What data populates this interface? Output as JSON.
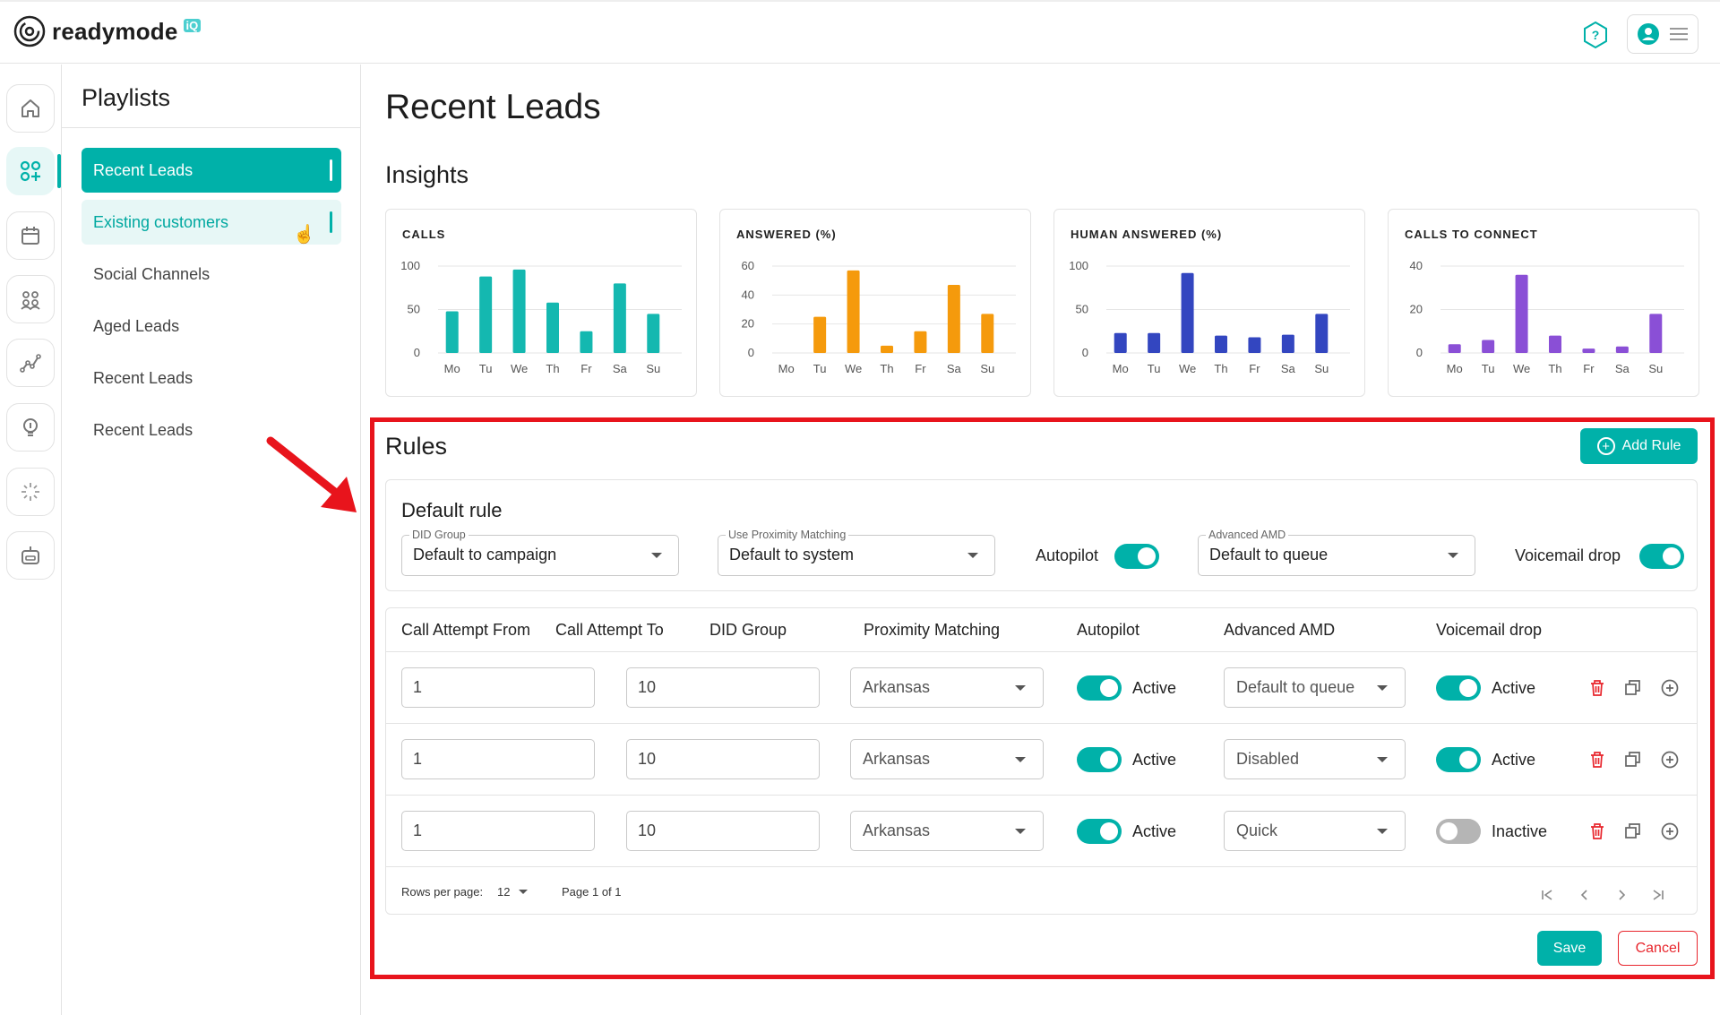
{
  "app": {
    "logo_text": "readymode",
    "logo_badge": "iQ"
  },
  "header": {
    "help_icon": "help-icon",
    "user_icon": "user-icon",
    "menu_icon": "hamburger-icon"
  },
  "rail": {
    "items": [
      {
        "icon": "home-icon",
        "active": false
      },
      {
        "icon": "playlists-icon",
        "active": true
      },
      {
        "icon": "calendar-icon",
        "active": false
      },
      {
        "icon": "team-icon",
        "active": false
      },
      {
        "icon": "analytics-icon",
        "active": false
      },
      {
        "icon": "lightbulb-icon",
        "active": false
      },
      {
        "icon": "loading-icon",
        "active": false
      },
      {
        "icon": "bot-icon",
        "active": false
      }
    ]
  },
  "playlists": {
    "title": "Playlists",
    "items": [
      {
        "label": "Recent Leads",
        "state": "selected"
      },
      {
        "label": "Existing customers",
        "state": "hover"
      },
      {
        "label": "Social Channels",
        "state": "normal"
      },
      {
        "label": "Aged Leads",
        "state": "normal"
      },
      {
        "label": "Recent Leads",
        "state": "normal"
      },
      {
        "label": "Recent Leads",
        "state": "normal"
      }
    ]
  },
  "main": {
    "title": "Recent Leads",
    "insights_title": "Insights"
  },
  "chart_data": [
    {
      "type": "bar",
      "title": "CALLS",
      "categories": [
        "Mo",
        "Tu",
        "We",
        "Th",
        "Fr",
        "Sa",
        "Su"
      ],
      "values": [
        48,
        88,
        96,
        58,
        25,
        80,
        45
      ],
      "yticks": [
        "100",
        "50",
        "0"
      ],
      "ylim": [
        0,
        100
      ],
      "color": "#14b8b0",
      "grid": true
    },
    {
      "type": "bar",
      "title": "ANSWERED (%)",
      "categories": [
        "Mo",
        "Tu",
        "We",
        "Th",
        "Fr",
        "Sa",
        "Su"
      ],
      "values": [
        0,
        25,
        57,
        5,
        15,
        47,
        27
      ],
      "yticks": [
        "60",
        "40",
        "20",
        "0"
      ],
      "ylim": [
        0,
        60
      ],
      "color": "#f59a0c",
      "grid": true
    },
    {
      "type": "bar",
      "title": "HUMAN ANSWERED (%)",
      "categories": [
        "Mo",
        "Tu",
        "We",
        "Th",
        "Fr",
        "Sa",
        "Su"
      ],
      "values": [
        23,
        23,
        92,
        20,
        18,
        21,
        45
      ],
      "yticks": [
        "100",
        "50",
        "0"
      ],
      "ylim": [
        0,
        100
      ],
      "color": "#3346c0",
      "grid": true
    },
    {
      "type": "bar",
      "title": "CALLS TO CONNECT",
      "categories": [
        "Mo",
        "Tu",
        "We",
        "Th",
        "Fr",
        "Sa",
        "Su"
      ],
      "values": [
        4,
        6,
        36,
        8,
        2,
        3,
        18
      ],
      "yticks": [
        "40",
        "20",
        "0"
      ],
      "ylim": [
        0,
        40
      ],
      "color": "#8a4fd6",
      "grid": true
    }
  ],
  "rules": {
    "title": "Rules",
    "add_rule_label": "Add Rule",
    "default_rule": {
      "title": "Default rule",
      "did_group": {
        "label": "DID Group",
        "value": "Default to campaign"
      },
      "proximity": {
        "label": "Use Proximity Matching",
        "value": "Default to system"
      },
      "autopilot_label": "Autopilot",
      "autopilot_on": true,
      "amd": {
        "label": "Advanced AMD",
        "value": "Default to queue"
      },
      "voicemail_label": "Voicemail drop",
      "voicemail_on": true
    },
    "columns": [
      "Call Attempt From",
      "Call Attempt To",
      "DID Group",
      "Proximity Matching",
      "Autopilot",
      "Advanced AMD",
      "Voicemail drop"
    ],
    "rows": [
      {
        "from": "1",
        "to": "10",
        "proximity": "Arkansas",
        "autopilot": "Active",
        "autopilot_on": true,
        "amd": "Default to queue",
        "voicemail": "Active",
        "voicemail_on": true
      },
      {
        "from": "1",
        "to": "10",
        "proximity": "Arkansas",
        "autopilot": "Active",
        "autopilot_on": true,
        "amd": "Disabled",
        "voicemail": "Active",
        "voicemail_on": true
      },
      {
        "from": "1",
        "to": "10",
        "proximity": "Arkansas",
        "autopilot": "Active",
        "autopilot_on": true,
        "amd": "Quick",
        "voicemail": "Inactive",
        "voicemail_on": false
      }
    ],
    "pagination": {
      "rows_per_page_label": "Rows per page:",
      "rows_per_page": "12",
      "page_info": "Page 1 of 1"
    },
    "save_label": "Save",
    "cancel_label": "Cancel"
  },
  "colors": {
    "accent": "#00b1a9",
    "danger": "#e8262d",
    "highlight": "#e8141c"
  }
}
